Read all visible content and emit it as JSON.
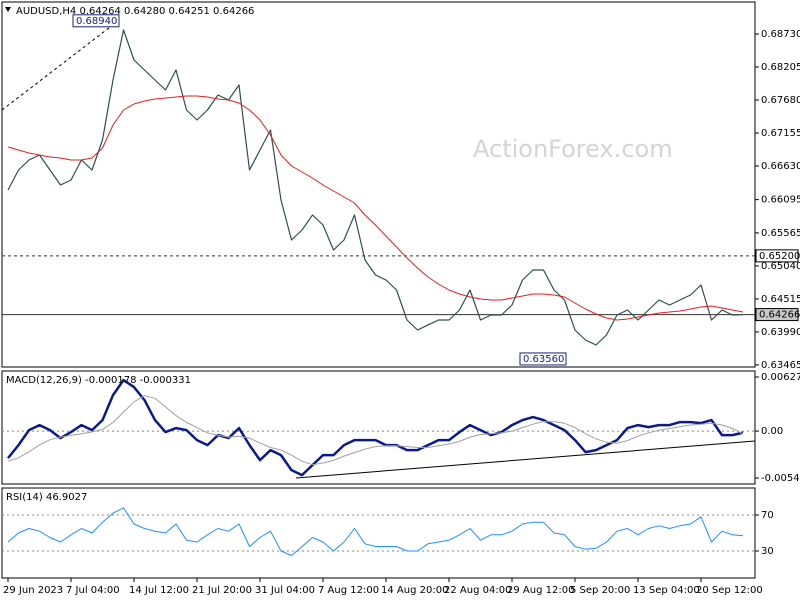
{
  "chart_data": [
    {
      "type": "line",
      "title": "AUDUSD,H4  0.64264 0.64280 0.64251 0.64266",
      "watermark": "ActionForex.com",
      "categories": [
        "29 Jun 2023",
        null,
        null,
        null,
        null,
        null,
        "7 Jul 04:00",
        null,
        null,
        null,
        null,
        null,
        "14 Jul 12:00",
        null,
        null,
        null,
        null,
        null,
        "21 Jul 20:00",
        null,
        null,
        null,
        null,
        null,
        "31 Jul 04:00",
        null,
        null,
        null,
        null,
        null,
        "7 Aug 12:00",
        null,
        null,
        null,
        null,
        null,
        "14 Aug 20:00",
        null,
        null,
        null,
        null,
        null,
        "22 Aug 04:00",
        null,
        null,
        null,
        null,
        null,
        "29 Aug 12:00",
        null,
        null,
        null,
        null,
        null,
        "5 Sep 20:00",
        null,
        null,
        null,
        null,
        null,
        "13 Sep 04:00",
        null,
        null,
        null,
        null,
        null,
        "20 Sep 12:00",
        null,
        null,
        null,
        null
      ],
      "series": [
        {
          "name": "AUDUSD",
          "color": "#2f4f4f",
          "width": 1.2,
          "values": [
            0.66248,
            0.66566,
            0.66726,
            0.66805,
            0.66566,
            0.66328,
            0.66407,
            0.66726,
            0.66566,
            0.67044,
            0.67998,
            0.68794,
            0.68316,
            0.68157,
            0.67998,
            0.67839,
            0.68157,
            0.67521,
            0.67362,
            0.67521,
            0.6776,
            0.6768,
            0.67919,
            0.66566,
            0.66885,
            0.67203,
            0.66089,
            0.65453,
            0.65612,
            0.65851,
            0.65691,
            0.65294,
            0.65453,
            0.65851,
            0.65135,
            0.64896,
            0.64816,
            0.64657,
            0.6418,
            0.64021,
            0.64101,
            0.6418,
            0.6418,
            0.64339,
            0.64657,
            0.6418,
            0.6426,
            0.6426,
            0.64419,
            0.64816,
            0.64976,
            0.64976,
            0.64657,
            0.64498,
            0.64021,
            0.63862,
            0.63782,
            0.63941,
            0.6426,
            0.64339,
            0.6418,
            0.64339,
            0.64498,
            0.64419,
            0.64498,
            0.64578,
            0.64737,
            0.6418,
            0.64339,
            0.6426,
            0.64266
          ]
        },
        {
          "name": "MA",
          "color": "#e02020",
          "width": 1,
          "values": [
            0.66932,
            0.66885,
            0.66837,
            0.66805,
            0.66773,
            0.66757,
            0.66726,
            0.66726,
            0.66757,
            0.66916,
            0.67282,
            0.67521,
            0.67616,
            0.67664,
            0.67696,
            0.67712,
            0.67728,
            0.67744,
            0.67744,
            0.67728,
            0.67696,
            0.6768,
            0.67632,
            0.67521,
            0.67362,
            0.67123,
            0.66805,
            0.6663,
            0.66535,
            0.66439,
            0.66328,
            0.66232,
            0.66137,
            0.66041,
            0.65851,
            0.65691,
            0.65516,
            0.65341,
            0.65166,
            0.65007,
            0.64864,
            0.64753,
            0.64657,
            0.64594,
            0.64546,
            0.64514,
            0.64498,
            0.64498,
            0.6453,
            0.64562,
            0.64594,
            0.64594,
            0.64578,
            0.64546,
            0.64451,
            0.64355,
            0.64276,
            0.64212,
            0.6418,
            0.64196,
            0.64228,
            0.6426,
            0.64291,
            0.64307,
            0.64323,
            0.64355,
            0.64387,
            0.64403,
            0.64371,
            0.64339,
            0.64307
          ]
        }
      ],
      "ylim": [
        0.63432,
        0.69239
      ],
      "yticks": [
        {
          "value": 0.6873,
          "label": "0.68730"
        },
        {
          "value": 0.68205,
          "label": "0.68205"
        },
        {
          "value": 0.6768,
          "label": "0.67680"
        },
        {
          "value": 0.67155,
          "label": "0.67155"
        },
        {
          "value": 0.6663,
          "label": "0.66630"
        },
        {
          "value": 0.66095,
          "label": "0.66095"
        },
        {
          "value": 0.65565,
          "label": "0.65565"
        },
        {
          "value": 0.6504,
          "label": "0.65040"
        },
        {
          "value": 0.64515,
          "label": "0.64515"
        },
        {
          "value": 0.6399,
          "label": "0.63990"
        },
        {
          "value": 0.63465,
          "label": "0.63465"
        }
      ],
      "hlines": [
        {
          "value": 0.652,
          "label": "0.65200",
          "style": "dashed",
          "box": "#ffffff"
        },
        {
          "value": 0.64266,
          "label": "0.64266",
          "style": "solid",
          "box": "#c8c8c8"
        }
      ],
      "annotations": [
        {
          "value": 0.6894,
          "label": "0.68940"
        },
        {
          "value": 0.6356,
          "label": "0.63560"
        }
      ]
    },
    {
      "type": "line",
      "title": "MACD(12,26,9) -0.000178 -0.000331",
      "zero_line": true,
      "series": [
        {
          "name": "MACD",
          "color": "#0a1a8c",
          "width": 2.5,
          "values": [
            -0.003132,
            -0.001624,
            0.000116,
            0.000696,
            0.000116,
            -0.000812,
            -0.000116,
            0.000696,
            0.000116,
            0.001276,
            0.004176,
            0.005916,
            0.005104,
            0.003596,
            0.001276,
            -0.000116,
            0.000348,
            0.000116,
            -0.001044,
            -0.001624,
            -0.000464,
            -0.000812,
            0.000348,
            -0.001624,
            -0.003364,
            -0.002204,
            -0.002784,
            -0.004524,
            -0.005104,
            -0.003944,
            -0.002784,
            -0.002784,
            -0.001624,
            -0.001044,
            -0.001044,
            -0.001044,
            -0.001624,
            -0.001624,
            -0.002204,
            -0.002204,
            -0.001624,
            -0.001044,
            -0.001044,
            -0.000116,
            0.000696,
            0.000116,
            -0.000464,
            -0.000116,
            0.000696,
            0.001276,
            0.001624,
            0.001276,
            0.000696,
            0.000116,
            -0.001044,
            -0.002436,
            -0.002204,
            -0.001624,
            -0.001044,
            0.000348,
            0.000696,
            0.000464,
            0.000696,
            0.000696,
            0.001044,
            0.001044,
            0.000928,
            0.001276,
            -0.000464,
            -0.000464,
            -0.000178
          ]
        },
        {
          "name": "Signal",
          "color": "#a0a0a0",
          "width": 1,
          "values": [
            -0.0035,
            -0.0031,
            -0.0024,
            -0.0016,
            -0.001,
            -0.0007,
            -0.0005,
            -0.0003,
            -0.0001,
            0.0002,
            0.001,
            0.0022,
            0.0034,
            0.0041,
            0.0038,
            0.0028,
            0.0018,
            0.001,
            0.0004,
            -0.0002,
            -0.0005,
            -0.0007,
            -0.0006,
            -0.0008,
            -0.0014,
            -0.0019,
            -0.0022,
            -0.0028,
            -0.0035,
            -0.0039,
            -0.0037,
            -0.0034,
            -0.0029,
            -0.0025,
            -0.0021,
            -0.0018,
            -0.0017,
            -0.0017,
            -0.0018,
            -0.0019,
            -0.0019,
            -0.0017,
            -0.0015,
            -0.0012,
            -0.0007,
            -0.0004,
            -0.0003,
            -0.0002,
            0,
            0.0004,
            0.0008,
            0.0011,
            0.0011,
            0.0009,
            0.0004,
            -0.0003,
            -0.0009,
            -0.0013,
            -0.0014,
            -0.0011,
            -0.0006,
            -0.0002,
            0.0001,
            0.0003,
            0.0005,
            0.0007,
            0.0008,
            0.0009,
            0.0007,
            0.0003,
            -0.000331
          ]
        }
      ],
      "ylim": [
        -0.00614,
        0.00697
      ],
      "yticks": [
        0.006275,
        {
          "value": 0,
          "label": "0.00"
        },
        -0.005446
      ]
    },
    {
      "type": "line",
      "title": "RSI(14) 46.9027",
      "tick_lines": true,
      "series": [
        {
          "name": "RSI",
          "color": "#1e90ff",
          "width": 1,
          "values": [
            40,
            50,
            55,
            52,
            45,
            40,
            48,
            55,
            50,
            62,
            72,
            78,
            60,
            55,
            52,
            50,
            60,
            42,
            40,
            48,
            55,
            52,
            60,
            35,
            45,
            52,
            30,
            25,
            35,
            45,
            40,
            30,
            40,
            55,
            38,
            35,
            35,
            35,
            30,
            30,
            38,
            40,
            42,
            48,
            55,
            42,
            48,
            48,
            52,
            60,
            62,
            62,
            50,
            48,
            35,
            32,
            33,
            40,
            52,
            55,
            48,
            55,
            58,
            55,
            58,
            60,
            68,
            40,
            52,
            48,
            46.9027
          ]
        }
      ],
      "ylim": [
        0,
        100
      ],
      "yticks": [
        70,
        30
      ]
    }
  ]
}
